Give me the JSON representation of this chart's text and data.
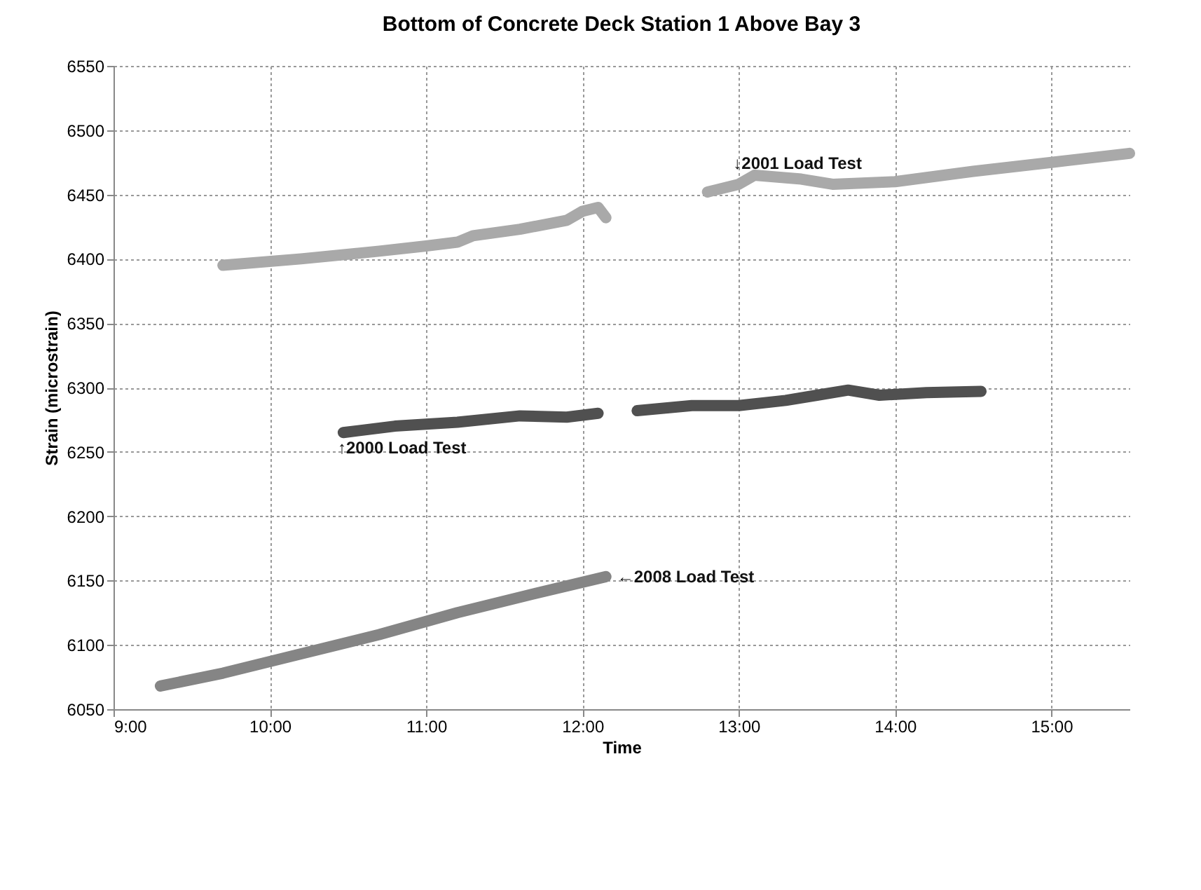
{
  "chart_data": {
    "type": "line",
    "title": "Bottom of Concrete Deck Station 1 Above Bay 3",
    "xlabel": "Time",
    "ylabel": "Strain (microstrain)",
    "xlim": [
      9,
      15.5
    ],
    "xticks": [
      {
        "value": 9,
        "label": "9:00"
      },
      {
        "value": 10,
        "label": "10:00"
      },
      {
        "value": 11,
        "label": "11:00"
      },
      {
        "value": 12,
        "label": "12:00"
      },
      {
        "value": 13,
        "label": "13:00"
      },
      {
        "value": 14,
        "label": "14:00"
      },
      {
        "value": 15,
        "label": "15:00"
      }
    ],
    "ylim": [
      6050,
      6550
    ],
    "yticks": [
      6050,
      6100,
      6150,
      6200,
      6250,
      6300,
      6350,
      6400,
      6450,
      6500,
      6550
    ],
    "grid": true,
    "series": [
      {
        "color": "#a9a9a9",
        "x": [
          9.7,
          10.2,
          10.7,
          11.0,
          11.2,
          11.3,
          11.6,
          11.9,
          12.0,
          12.1,
          12.15,
          12.5,
          12.8,
          13.0,
          13.1,
          13.4,
          13.6,
          14.0,
          14.5,
          15.0,
          15.5
        ],
        "values": [
          6395,
          6400,
          6406,
          6410,
          6413,
          6418,
          6423,
          6430,
          6437,
          6440,
          6432,
          null,
          6452,
          6458,
          6465,
          6462,
          6458,
          6460,
          6468,
          6475,
          6482
        ]
      },
      {
        "color": "#505050",
        "x": [
          10.47,
          10.8,
          11.2,
          11.6,
          11.9,
          12.1,
          12.2,
          12.35,
          12.7,
          13.0,
          13.3,
          13.5,
          13.7,
          13.9,
          14.2,
          14.55
        ],
        "values": [
          6265,
          6270,
          6273,
          6278,
          6277,
          6280,
          null,
          6282,
          6286,
          6286,
          6290,
          6294,
          6298,
          6294,
          6296,
          6297
        ],
        "line_style": "solid"
      },
      {
        "color": "#858585",
        "x": [
          9.3,
          9.7,
          10.2,
          10.7,
          11.2,
          11.7,
          12.15
        ],
        "values": [
          6068,
          6078,
          6093,
          6108,
          6125,
          6140,
          6153
        ]
      }
    ],
    "annotations": [
      {
        "text": "↓2001 Load Test",
        "x": 13.0,
        "y": 6458
      },
      {
        "text": "↑2000 Load Test",
        "x": 10.47,
        "y": 6265
      },
      {
        "text": "←2008 Load Test",
        "x": 12.15,
        "y": 6153
      }
    ]
  }
}
